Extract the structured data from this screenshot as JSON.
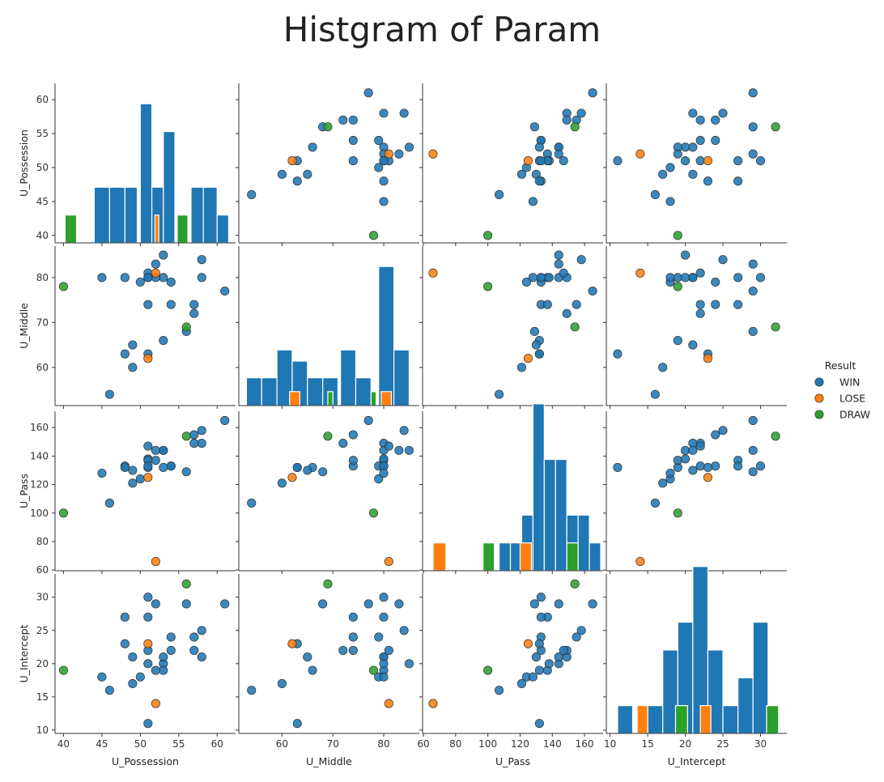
{
  "chart_data": {
    "type": "scatter",
    "title": "Histgram of Param",
    "variables": [
      "U_Possession",
      "U_Middle",
      "U_Pass",
      "U_Intercept"
    ],
    "axes": {
      "U_Possession": {
        "range": [
          38.9,
          62.4
        ],
        "ticks": [
          40,
          45,
          50,
          55,
          60
        ]
      },
      "U_Middle": {
        "range": [
          51.5,
          87.0
        ],
        "ticks": [
          60,
          70,
          80
        ]
      },
      "U_Pass": {
        "range": [
          59.5,
          171.5
        ],
        "ticks": [
          60,
          80,
          100,
          120,
          140,
          160
        ]
      },
      "U_Intercept": {
        "range": [
          9.5,
          33.5
        ],
        "ticks": [
          10,
          15,
          20,
          25,
          30
        ]
      }
    },
    "legend": {
      "title": "Result",
      "placement": "right",
      "entries": [
        {
          "name": "WIN",
          "color": "#1f77b4"
        },
        {
          "name": "LOSE",
          "color": "#ff7f0e"
        },
        {
          "name": "DRAW",
          "color": "#2ca02c"
        }
      ]
    },
    "points": [
      {
        "result": "WIN",
        "values": [
          61,
          77,
          165,
          29
        ]
      },
      {
        "result": "WIN",
        "values": [
          58,
          84,
          158,
          25
        ]
      },
      {
        "result": "WIN",
        "values": [
          58,
          80,
          149,
          21
        ]
      },
      {
        "result": "WIN",
        "values": [
          57,
          74,
          155,
          24
        ]
      },
      {
        "result": "WIN",
        "values": [
          57,
          72,
          149,
          22
        ]
      },
      {
        "result": "WIN",
        "values": [
          56,
          68,
          129,
          29
        ]
      },
      {
        "result": "WIN",
        "values": [
          54,
          74,
          133,
          22
        ]
      },
      {
        "result": "WIN",
        "values": [
          54,
          79,
          133,
          24
        ]
      },
      {
        "result": "WIN",
        "values": [
          53,
          85,
          144,
          20
        ]
      },
      {
        "result": "WIN",
        "values": [
          53,
          66,
          132,
          19
        ]
      },
      {
        "result": "WIN",
        "values": [
          53,
          80,
          144,
          21
        ]
      },
      {
        "result": "WIN",
        "values": [
          52,
          83,
          144,
          29
        ]
      },
      {
        "result": "WIN",
        "values": [
          52,
          80,
          137,
          19
        ]
      },
      {
        "result": "WIN",
        "values": [
          51,
          81,
          147,
          22
        ]
      },
      {
        "result": "WIN",
        "values": [
          51,
          80,
          138,
          20
        ]
      },
      {
        "result": "WIN",
        "values": [
          51,
          74,
          137,
          27
        ]
      },
      {
        "result": "WIN",
        "values": [
          51,
          63,
          132,
          11
        ]
      },
      {
        "result": "WIN",
        "values": [
          51,
          80,
          133,
          30
        ]
      },
      {
        "result": "WIN",
        "values": [
          50,
          79,
          124,
          18
        ]
      },
      {
        "result": "WIN",
        "values": [
          49,
          65,
          130,
          21
        ]
      },
      {
        "result": "WIN",
        "values": [
          49,
          60,
          121,
          17
        ]
      },
      {
        "result": "WIN",
        "values": [
          48,
          80,
          133,
          27
        ]
      },
      {
        "result": "WIN",
        "values": [
          48,
          63,
          132,
          23
        ]
      },
      {
        "result": "WIN",
        "values": [
          46,
          54,
          107,
          16
        ]
      },
      {
        "result": "WIN",
        "values": [
          45,
          80,
          128,
          18
        ]
      },
      {
        "result": "LOSE",
        "values": [
          52,
          81,
          66,
          14
        ]
      },
      {
        "result": "LOSE",
        "values": [
          51,
          62,
          125,
          23
        ]
      },
      {
        "result": "DRAW",
        "values": [
          56,
          69,
          154,
          32
        ]
      },
      {
        "result": "DRAW",
        "values": [
          40,
          78,
          100,
          19
        ]
      }
    ],
    "histograms": [
      {
        "variable": "U_Possession",
        "bars": [
          {
            "x0": 44.0,
            "x1": 46.0,
            "count": 2,
            "result": "WIN"
          },
          {
            "x0": 46.0,
            "x1": 48.0,
            "count": 2,
            "result": "WIN"
          },
          {
            "x0": 48.0,
            "x1": 49.6,
            "count": 2,
            "result": "WIN"
          },
          {
            "x0": 50.0,
            "x1": 51.5,
            "count": 5,
            "result": "WIN"
          },
          {
            "x0": 51.5,
            "x1": 53.0,
            "count": 2,
            "result": "WIN"
          },
          {
            "x0": 53.0,
            "x1": 54.5,
            "count": 4,
            "result": "WIN"
          },
          {
            "x0": 56.6,
            "x1": 58.2,
            "count": 2,
            "result": "WIN"
          },
          {
            "x0": 58.2,
            "x1": 60.0,
            "count": 2,
            "result": "WIN"
          },
          {
            "x0": 60.0,
            "x1": 61.5,
            "count": 1,
            "result": "WIN"
          },
          {
            "x0": 40.2,
            "x1": 41.7,
            "count": 1,
            "result": "DRAW"
          },
          {
            "x0": 54.8,
            "x1": 56.2,
            "count": 1,
            "result": "DRAW"
          },
          {
            "x0": 51.9,
            "x1": 52.4,
            "count": 1,
            "result": "LOSE"
          }
        ]
      },
      {
        "variable": "U_Middle",
        "bars": [
          {
            "x0": 53.0,
            "x1": 56.0,
            "count": 1,
            "result": "WIN"
          },
          {
            "x0": 56.0,
            "x1": 59.0,
            "count": 1,
            "result": "WIN"
          },
          {
            "x0": 59.0,
            "x1": 62.0,
            "count": 2,
            "result": "WIN"
          },
          {
            "x0": 62.0,
            "x1": 65.0,
            "count": 1.6,
            "result": "WIN"
          },
          {
            "x0": 65.0,
            "x1": 68.0,
            "count": 1,
            "result": "WIN"
          },
          {
            "x0": 68.0,
            "x1": 71.0,
            "count": 1,
            "result": "WIN"
          },
          {
            "x0": 71.5,
            "x1": 74.5,
            "count": 2,
            "result": "WIN"
          },
          {
            "x0": 74.5,
            "x1": 77.5,
            "count": 1,
            "result": "WIN"
          },
          {
            "x0": 79.0,
            "x1": 82.0,
            "count": 5,
            "result": "WIN"
          },
          {
            "x0": 82.0,
            "x1": 85.0,
            "count": 2,
            "result": "WIN"
          },
          {
            "x0": 61.5,
            "x1": 63.5,
            "count": 0.5,
            "result": "LOSE"
          },
          {
            "x0": 79.5,
            "x1": 81.5,
            "count": 0.5,
            "result": "LOSE"
          },
          {
            "x0": 69.0,
            "x1": 70.0,
            "count": 0.5,
            "result": "DRAW"
          },
          {
            "x0": 77.5,
            "x1": 78.5,
            "count": 0.5,
            "result": "DRAW"
          }
        ]
      },
      {
        "variable": "U_Pass",
        "bars": [
          {
            "x0": 107,
            "x1": 114,
            "count": 1,
            "result": "WIN"
          },
          {
            "x0": 114,
            "x1": 121,
            "count": 1,
            "result": "WIN"
          },
          {
            "x0": 121,
            "x1": 128,
            "count": 2,
            "result": "WIN"
          },
          {
            "x0": 128,
            "x1": 135,
            "count": 6,
            "result": "WIN"
          },
          {
            "x0": 135,
            "x1": 142,
            "count": 4,
            "result": "WIN"
          },
          {
            "x0": 142,
            "x1": 149,
            "count": 4,
            "result": "WIN"
          },
          {
            "x0": 149,
            "x1": 156,
            "count": 2,
            "result": "WIN"
          },
          {
            "x0": 156,
            "x1": 163,
            "count": 2,
            "result": "WIN"
          },
          {
            "x0": 163,
            "x1": 170,
            "count": 1,
            "result": "WIN"
          },
          {
            "x0": 66,
            "x1": 74,
            "count": 1,
            "result": "LOSE"
          },
          {
            "x0": 120,
            "x1": 127,
            "count": 1,
            "result": "LOSE"
          },
          {
            "x0": 97,
            "x1": 104,
            "count": 1,
            "result": "DRAW"
          },
          {
            "x0": 149,
            "x1": 156,
            "count": 1,
            "result": "DRAW"
          }
        ]
      },
      {
        "variable": "U_Intercept",
        "bars": [
          {
            "x0": 11.0,
            "x1": 13.0,
            "count": 1,
            "result": "WIN"
          },
          {
            "x0": 15.0,
            "x1": 17.0,
            "count": 1,
            "result": "WIN"
          },
          {
            "x0": 17.0,
            "x1": 19.0,
            "count": 3,
            "result": "WIN"
          },
          {
            "x0": 19.0,
            "x1": 21.0,
            "count": 4,
            "result": "WIN"
          },
          {
            "x0": 21.0,
            "x1": 23.0,
            "count": 6,
            "result": "WIN"
          },
          {
            "x0": 23.0,
            "x1": 25.0,
            "count": 3,
            "result": "WIN"
          },
          {
            "x0": 25.0,
            "x1": 27.0,
            "count": 1,
            "result": "WIN"
          },
          {
            "x0": 27.0,
            "x1": 29.0,
            "count": 2,
            "result": "WIN"
          },
          {
            "x0": 29.0,
            "x1": 31.0,
            "count": 4,
            "result": "WIN"
          },
          {
            "x0": 13.6,
            "x1": 15.0,
            "count": 1,
            "result": "LOSE"
          },
          {
            "x0": 22.0,
            "x1": 23.4,
            "count": 1,
            "result": "LOSE"
          },
          {
            "x0": 18.7,
            "x1": 20.3,
            "count": 1,
            "result": "DRAW"
          },
          {
            "x0": 30.8,
            "x1": 32.4,
            "count": 1,
            "result": "DRAW"
          }
        ]
      }
    ]
  }
}
